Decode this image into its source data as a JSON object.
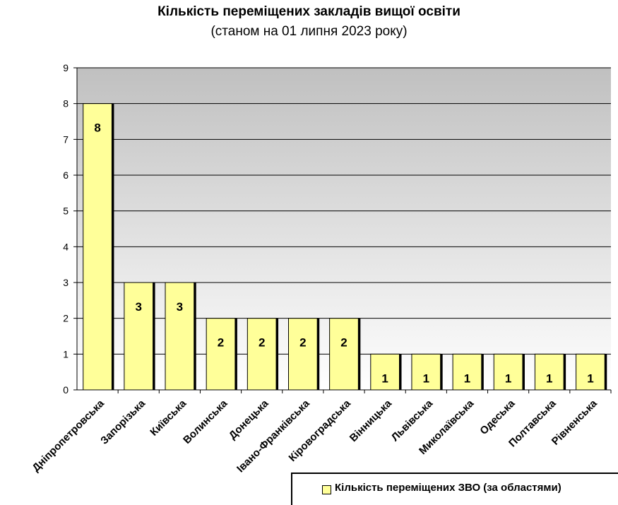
{
  "chart_data": {
    "type": "bar",
    "title": "Кількість переміщених закладів вищої освіти",
    "subtitle": "(станом на 01 липня 2023 року)",
    "categories": [
      "Дніпропетровська",
      "Запорізька",
      "Київська",
      "Волинська",
      "Донецька",
      "Івано-Франківська",
      "Кіровоградська",
      "Вінницька",
      "Львівська",
      "Миколаївська",
      "Одеська",
      "Полтавська",
      "Рівненська"
    ],
    "series": [
      {
        "name": "Кількість переміщених ЗВО (за областями)",
        "values": [
          8,
          3,
          3,
          2,
          2,
          2,
          2,
          1,
          1,
          1,
          1,
          1,
          1
        ]
      }
    ],
    "ylim": [
      0,
      9
    ],
    "yticks": [
      0,
      1,
      2,
      3,
      4,
      5,
      6,
      7,
      8,
      9
    ],
    "grid": true,
    "legend": "bottom-right",
    "colors": {
      "bar": "#ffff99",
      "bar_shadow": "#000000",
      "plot_top": "#c0c0c0",
      "plot_bottom": "#ffffff"
    }
  }
}
